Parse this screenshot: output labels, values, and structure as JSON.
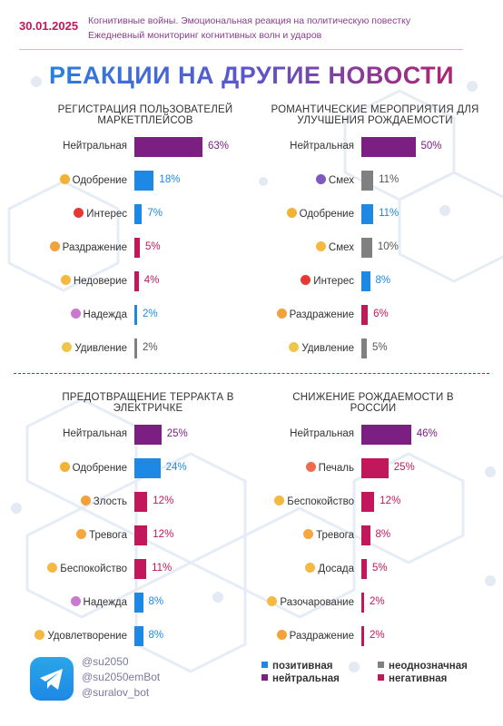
{
  "header": {
    "date": "30.01.2025",
    "subtitle_line1": "Когнитивные войны. Эмоциональная реакция на политическую повестку",
    "subtitle_line2": "Ежедневный мониторинг когнитивных волн и ударов"
  },
  "main_title": "РЕАКЦИИ НА ДРУГИЕ НОВОСТИ",
  "colors": {
    "positive": "#1e88e5",
    "neutral": "#7b1f82",
    "ambiguous": "#808080",
    "negative": "#c2185b"
  },
  "chart_data": [
    {
      "type": "bar",
      "title": "РЕГИСТРАЦИЯ ПОЛЬЗОВАТЕЛЕЙ МАРКЕТПЛЕЙСОВ",
      "categories": [
        "Нейтральная",
        "Одобрение",
        "Интерес",
        "Раздражение",
        "Недоверие",
        "Надежда",
        "Удивление"
      ],
      "values": [
        63,
        18,
        7,
        5,
        4,
        2,
        2
      ],
      "labels": [
        "63%",
        "18%",
        "7%",
        "5%",
        "4%",
        "2%",
        "2%"
      ],
      "kinds": [
        "neutral",
        "positive",
        "positive",
        "negative",
        "negative",
        "positive",
        "ambiguous"
      ],
      "icons": [
        "",
        "handshake-icon",
        "exclamation-question-icon",
        "angry-face-icon",
        "worried-face-icon",
        "praying-hands-icon",
        "astonished-face-icon"
      ]
    },
    {
      "type": "bar",
      "title": "РОМАНТИЧЕСКИЕ МЕРОПРИЯТИЯ ДЛЯ УЛУЧШЕНИЯ РОЖДАЕМОСТИ",
      "categories": [
        "Нейтральная",
        "Смех",
        "Одобрение",
        "Смех",
        "Интерес",
        "Раздражение",
        "Удивление"
      ],
      "values": [
        50,
        11,
        11,
        10,
        8,
        6,
        5
      ],
      "labels": [
        "50%",
        "11%",
        "11%",
        "10%",
        "8%",
        "6%",
        "5%"
      ],
      "kinds": [
        "neutral",
        "ambiguous",
        "positive",
        "ambiguous",
        "positive",
        "negative",
        "ambiguous"
      ],
      "icons": [
        "",
        "devil-smile-icon",
        "handshake-icon",
        "laughing-face-icon",
        "exclamation-question-icon",
        "angry-face-icon",
        "astonished-face-icon"
      ]
    },
    {
      "type": "bar",
      "title": "ПРЕДОТВРАЩЕНИЕ ТЕРРАКТА В ЭЛЕКТРИЧКЕ",
      "categories": [
        "Нейтральная",
        "Одобрение",
        "Злость",
        "Тревога",
        "Беспокойство",
        "Надежда",
        "Удовлетворение"
      ],
      "values": [
        25,
        24,
        12,
        12,
        11,
        8,
        8
      ],
      "labels": [
        "25%",
        "24%",
        "12%",
        "12%",
        "11%",
        "8%",
        "8%"
      ],
      "kinds": [
        "neutral",
        "positive",
        "negative",
        "negative",
        "negative",
        "positive",
        "positive"
      ],
      "icons": [
        "",
        "handshake-icon",
        "angry-face-icon",
        "anxious-face-icon",
        "worried-face-icon",
        "praying-hands-icon",
        "smiling-face-icon"
      ]
    },
    {
      "type": "bar",
      "title": "СНИЖЕНИЕ РОЖДАЕМОСТИ В РОССИИ",
      "categories": [
        "Нейтральная",
        "Печаль",
        "Беспокойство",
        "Тревога",
        "Досада",
        "Разочарование",
        "Раздражение"
      ],
      "values": [
        46,
        25,
        12,
        8,
        5,
        2,
        2
      ],
      "labels": [
        "46%",
        "25%",
        "12%",
        "8%",
        "5%",
        "2%",
        "2%"
      ],
      "kinds": [
        "neutral",
        "negative",
        "negative",
        "negative",
        "negative",
        "negative",
        "negative"
      ],
      "icons": [
        "",
        "sad-face-icon",
        "worried-face-icon",
        "anxious-face-icon",
        "disappointed-face-icon",
        "disappointed-face-icon",
        "angry-face-icon"
      ]
    }
  ],
  "footer": {
    "links": [
      "@su2050",
      "@su2050emBot",
      "@suralov_bot"
    ],
    "legend": [
      {
        "label": "позитивная",
        "kind": "positive"
      },
      {
        "label": "неоднозначная",
        "kind": "ambiguous"
      },
      {
        "label": "нейтральная",
        "kind": "neutral"
      },
      {
        "label": "негативная",
        "kind": "negative"
      }
    ]
  }
}
